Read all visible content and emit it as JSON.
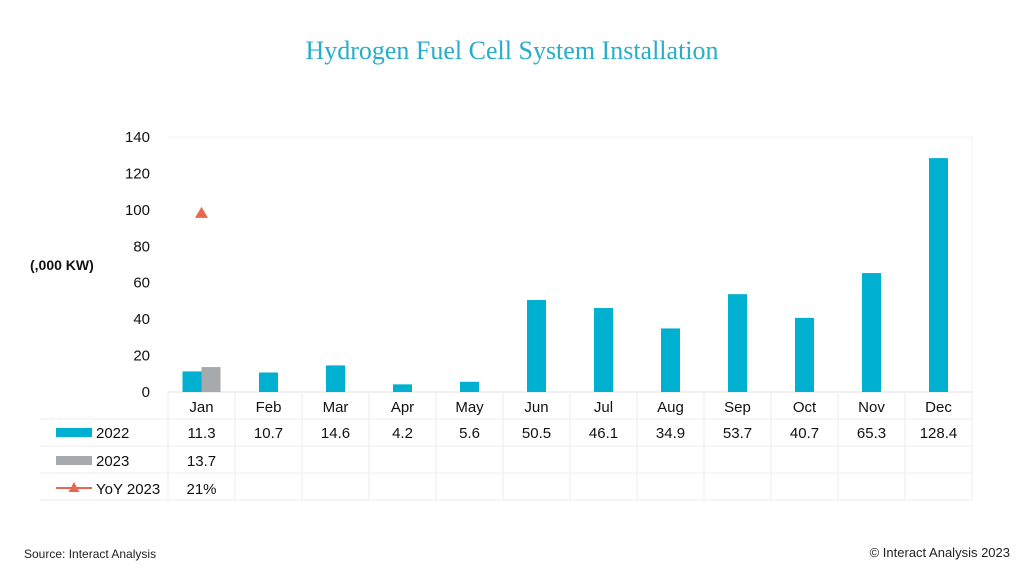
{
  "chart_data": {
    "type": "bar",
    "title": "Hydrogen Fuel Cell System Installation",
    "ylabel": "(,000 KW)",
    "ylim": [
      0,
      140
    ],
    "yticks": [
      0,
      20,
      40,
      60,
      80,
      100,
      120,
      140
    ],
    "categories": [
      "Jan",
      "Feb",
      "Mar",
      "Apr",
      "May",
      "Jun",
      "Jul",
      "Aug",
      "Sep",
      "Oct",
      "Nov",
      "Dec"
    ],
    "series": [
      {
        "name": "2022",
        "kind": "bar",
        "color": "#00b0d0",
        "values": [
          11.3,
          10.7,
          14.6,
          4.2,
          5.6,
          50.5,
          46.1,
          34.9,
          53.7,
          40.7,
          65.3,
          128.4
        ],
        "labels": [
          "11.3",
          "10.7",
          "14.6",
          "4.2",
          "5.6",
          "50.5",
          "46.1",
          "34.9",
          "53.7",
          "40.7",
          "65.3",
          "128.4"
        ]
      },
      {
        "name": "2023",
        "kind": "bar",
        "color": "#a6aaad",
        "values": [
          13.7,
          null,
          null,
          null,
          null,
          null,
          null,
          null,
          null,
          null,
          null,
          null
        ],
        "labels": [
          "13.7",
          "",
          "",
          "",
          "",
          "",
          "",
          "",
          "",
          "",
          "",
          ""
        ]
      },
      {
        "name": "YoY 2023",
        "kind": "marker",
        "color": "#e8674f",
        "values": [
          21,
          null,
          null,
          null,
          null,
          null,
          null,
          null,
          null,
          null,
          null,
          null
        ],
        "labels": [
          "21%",
          "",
          "",
          "",
          "",
          "",
          "",
          "",
          "",
          "",
          "",
          ""
        ]
      }
    ],
    "yoy_axis": {
      "range": [
        -260,
        140
      ],
      "unit": "%"
    },
    "grid": false,
    "legend": "data-table-below"
  },
  "footer": {
    "source": "Source: Interact Analysis",
    "copyright": "© Interact Analysis 2023"
  }
}
